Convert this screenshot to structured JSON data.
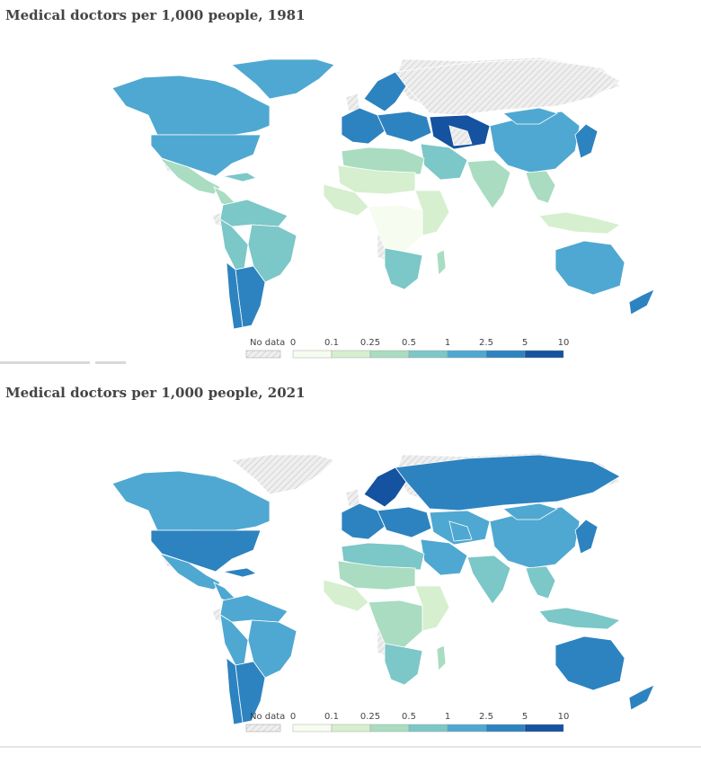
{
  "colors": {
    "nodata": "#efefef",
    "nodata_hatch": "#cfcfcf",
    "bins": [
      "#f7fcf0",
      "#d6efcf",
      "#a9dcc0",
      "#7cc7c8",
      "#4fa8d1",
      "#2d83bf",
      "#1552a0"
    ]
  },
  "maps": [
    {
      "title": "Medical doctors per 1,000 people, 1981",
      "legend": {
        "nodata_label": "No data",
        "ticks": [
          "0",
          "0.1",
          "0.25",
          "0.5",
          "1",
          "2.5",
          "5",
          "10"
        ]
      },
      "regions": {
        "north_america": 4,
        "greenland": 4,
        "usa_south": 4,
        "mexico": 2,
        "central_america": 2,
        "caribbean": 3,
        "south_america_north": 3,
        "brazil": 3,
        "andes": 3,
        "argentina": 5,
        "chile": 5,
        "western_europe": 5,
        "scandinavia": 5,
        "eastern_europe": 5,
        "russia": "nodata",
        "central_asia": 6,
        "middle_east": 3,
        "north_africa": 2,
        "sahara": 1,
        "west_africa": 1,
        "central_africa": 0,
        "east_africa": 1,
        "southern_africa": 3,
        "madagascar": 2,
        "india": 2,
        "china": 4,
        "mongolia": 4,
        "japan_korea": 5,
        "southeast_asia": 2,
        "indonesia": 1,
        "australia": 4,
        "new_zealand": 5,
        "mideast_nodata": "nodata"
      }
    },
    {
      "title": "Medical doctors per 1,000 people, 2021",
      "legend": {
        "nodata_label": "No data",
        "ticks": [
          "0",
          "0.1",
          "0.25",
          "0.5",
          "1",
          "2.5",
          "5",
          "10"
        ]
      },
      "regions": {
        "north_america": 4,
        "greenland": "nodata",
        "usa_south": 5,
        "mexico": 4,
        "central_america": 4,
        "caribbean": 5,
        "south_america_north": 4,
        "brazil": 4,
        "andes": 4,
        "argentina": 5,
        "chile": 5,
        "western_europe": 5,
        "scandinavia": 6,
        "eastern_europe": 5,
        "russia": 5,
        "central_asia": 4,
        "middle_east": 4,
        "north_africa": 3,
        "sahara": 2,
        "west_africa": 1,
        "central_africa": 2,
        "east_africa": 1,
        "southern_africa": 3,
        "madagascar": 2,
        "india": 3,
        "china": 4,
        "mongolia": 4,
        "japan_korea": 5,
        "southeast_asia": 3,
        "indonesia": 3,
        "australia": 5,
        "new_zealand": 5,
        "mideast_nodata": 4
      }
    }
  ]
}
